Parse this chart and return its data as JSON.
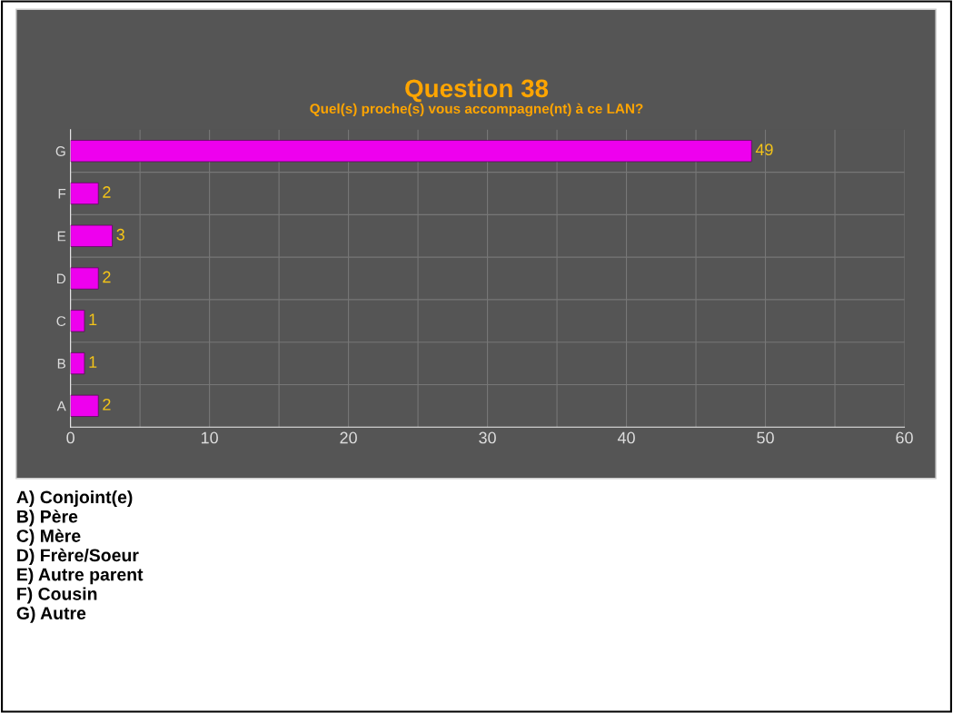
{
  "chart_data": {
    "type": "bar",
    "orientation": "horizontal",
    "title": "Question 38",
    "subtitle": "Quel(s) proche(s) vous accompagne(nt) à ce LAN?",
    "categories": [
      "G",
      "F",
      "E",
      "D",
      "C",
      "B",
      "A"
    ],
    "values": [
      49,
      2,
      3,
      2,
      1,
      1,
      2
    ],
    "color": "#ee00ee",
    "xlim": [
      0,
      60
    ],
    "xticks": [
      0,
      10,
      20,
      30,
      40,
      50,
      60
    ],
    "grid": true,
    "data_labels": true,
    "annotations": [
      "A) Conjoint(e)",
      "B) Père",
      "C) Mère",
      "D) Frère/Soeur",
      "E) Autre parent",
      "F) Cousin",
      "G) Autre"
    ]
  }
}
